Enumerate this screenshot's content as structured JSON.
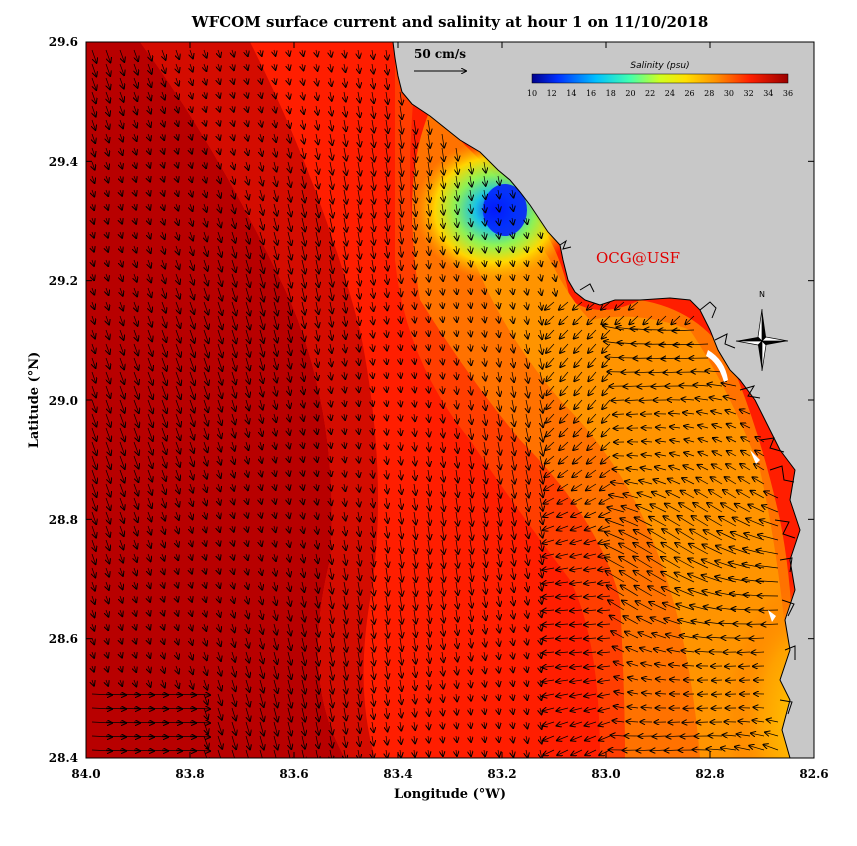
{
  "title": "WFCOM surface current and salinity at hour 1 on 11/10/2018",
  "axes": {
    "xlabel": "Longitude (°W)",
    "ylabel": "Latitude (°N)",
    "xticks": [
      "84.0",
      "83.8",
      "83.6",
      "83.4",
      "83.2",
      "83.0",
      "82.8",
      "82.6"
    ],
    "yticks": [
      "29.6",
      "29.4",
      "29.2",
      "29.0",
      "28.8",
      "28.6",
      "28.4"
    ],
    "xlim_west": [
      84.0,
      82.6
    ],
    "ylim_north": [
      28.4,
      29.6
    ]
  },
  "scale_arrow": {
    "label": "50 cm/s",
    "speed_cm_s": 50
  },
  "colorbar": {
    "title": "Salinity (psu)",
    "ticks": [
      "10",
      "12",
      "14",
      "16",
      "18",
      "20",
      "22",
      "24",
      "26",
      "28",
      "30",
      "32",
      "34",
      "36"
    ],
    "range": [
      10,
      36
    ]
  },
  "credit": "OCG@USF",
  "compass": {
    "label": "N"
  },
  "colors": {
    "land": "#c8c8c8",
    "coast": "#000000",
    "credit": "#e00000",
    "ocean_high": "#b50000",
    "ocean_mid": "#ff1e00",
    "ocean_low": "#ffa000"
  },
  "chart_data": {
    "type": "heatmap",
    "variable": "salinity",
    "units": "psu",
    "grid_on": false,
    "legend_placement": "top-right",
    "salinity_zones": [
      {
        "area": "offshore west",
        "lon_w": [
          84.0,
          83.5
        ],
        "lat_n": [
          28.4,
          29.6
        ],
        "salinity_psu": 35
      },
      {
        "area": "central shelf",
        "lon_w": [
          83.5,
          83.0
        ],
        "lat_n": [
          28.4,
          29.6
        ],
        "salinity_psu": 33
      },
      {
        "area": "nearshore south",
        "lon_w": [
          82.95,
          82.7
        ],
        "lat_n": [
          28.4,
          29.1
        ],
        "salinity_psu": 29
      },
      {
        "area": "river plume",
        "lon_w": [
          83.22,
          83.18
        ],
        "lat_n": [
          29.28,
          29.34
        ],
        "salinity_psu": 12
      }
    ],
    "currents": {
      "offshore_direction": "south-southeast",
      "nearshore_direction": "west-northwest",
      "typical_speed_cm_s": 20
    }
  }
}
